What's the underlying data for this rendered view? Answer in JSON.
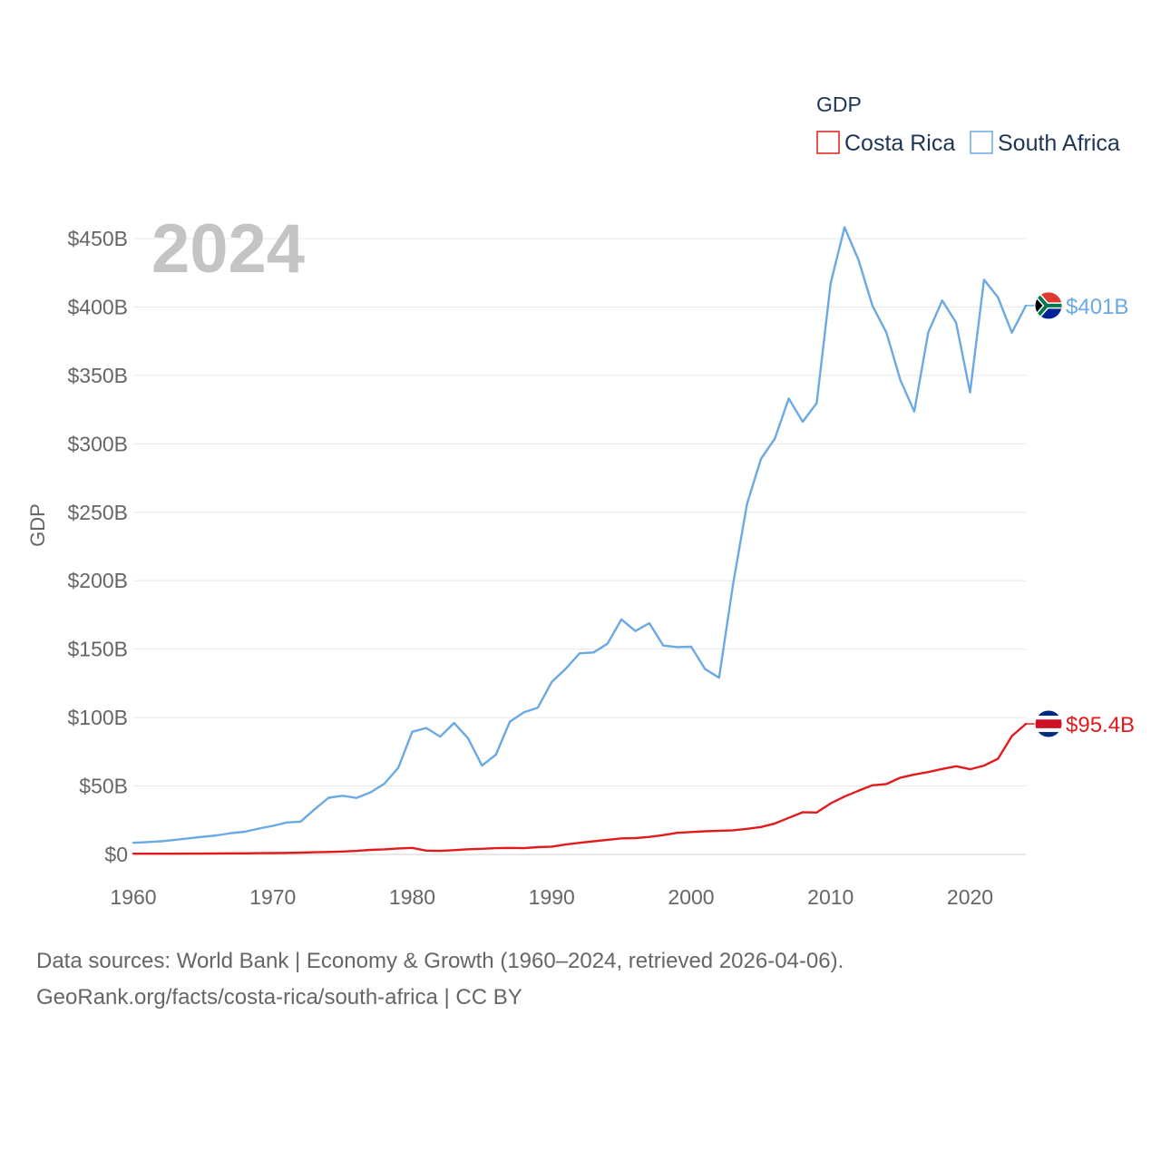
{
  "chart_data": {
    "type": "line",
    "title": "GDP",
    "ylabel": "GDP",
    "xlabel": "",
    "year_label": "2024",
    "x": [
      1960,
      1961,
      1962,
      1963,
      1964,
      1965,
      1966,
      1967,
      1968,
      1969,
      1970,
      1971,
      1972,
      1973,
      1974,
      1975,
      1976,
      1977,
      1978,
      1979,
      1980,
      1981,
      1982,
      1983,
      1984,
      1985,
      1986,
      1987,
      1988,
      1989,
      1990,
      1991,
      1992,
      1993,
      1994,
      1995,
      1996,
      1997,
      1998,
      1999,
      2000,
      2001,
      2002,
      2003,
      2004,
      2005,
      2006,
      2007,
      2008,
      2009,
      2010,
      2011,
      2012,
      2013,
      2014,
      2015,
      2016,
      2017,
      2018,
      2019,
      2020,
      2021,
      2022,
      2023,
      2024
    ],
    "xlim": [
      1960,
      2024
    ],
    "ylim": [
      0,
      450
    ],
    "y_unit": "B",
    "x_ticks": [
      1960,
      1970,
      1980,
      1990,
      2000,
      2010,
      2020
    ],
    "y_ticks": [
      {
        "value": 0,
        "label": "$0"
      },
      {
        "value": 50,
        "label": "$50B"
      },
      {
        "value": 100,
        "label": "$100B"
      },
      {
        "value": 150,
        "label": "$150B"
      },
      {
        "value": 200,
        "label": "$200B"
      },
      {
        "value": 250,
        "label": "$250B"
      },
      {
        "value": 300,
        "label": "$300B"
      },
      {
        "value": 350,
        "label": "$350B"
      },
      {
        "value": 400,
        "label": "$400B"
      },
      {
        "value": 450,
        "label": "$450B"
      }
    ],
    "grid": true,
    "legend_position": "top-right",
    "series": [
      {
        "name": "Costa Rica",
        "color": "#e31a1c",
        "end_label": "$95.4B",
        "flag": "costa-rica-flag-icon",
        "values": [
          0.5,
          0.5,
          0.5,
          0.5,
          0.6,
          0.6,
          0.7,
          0.8,
          0.8,
          0.9,
          1.0,
          1.1,
          1.3,
          1.6,
          1.8,
          2.1,
          2.6,
          3.3,
          3.7,
          4.4,
          4.8,
          2.8,
          2.6,
          3.1,
          3.8,
          4.1,
          4.6,
          4.8,
          4.6,
          5.3,
          5.7,
          7.2,
          8.5,
          9.6,
          10.7,
          11.7,
          11.9,
          12.8,
          14.1,
          15.8,
          16.4,
          16.9,
          17.3,
          17.6,
          18.7,
          20.0,
          22.6,
          26.7,
          30.8,
          30.6,
          37.3,
          42.3,
          46.5,
          50.5,
          51.4,
          56.1,
          58.4,
          60.2,
          62.4,
          64.4,
          62.2,
          64.9,
          69.9,
          86.5,
          95.4
        ]
      },
      {
        "name": "South Africa",
        "color": "#6aa9e3",
        "end_label": "$401B",
        "flag": "south-africa-flag-icon",
        "values": [
          8.5,
          9.0,
          9.6,
          10.7,
          11.8,
          12.9,
          13.9,
          15.6,
          16.6,
          18.9,
          20.9,
          23.3,
          24.0,
          33.0,
          41.4,
          42.9,
          41.3,
          45.3,
          51.7,
          63.3,
          89.6,
          92.4,
          86.1,
          96.0,
          84.9,
          64.9,
          73.0,
          97.0,
          103.8,
          107.2,
          126.0,
          135.6,
          146.9,
          147.6,
          154.0,
          171.7,
          163.2,
          168.9,
          152.6,
          151.5,
          151.8,
          135.4,
          129.1,
          197.0,
          255.8,
          288.9,
          303.9,
          333.1,
          316.1,
          329.8,
          417.4,
          458.2,
          434.4,
          400.9,
          381.2,
          346.7,
          323.6,
          381.4,
          404.8,
          388.5,
          337.6,
          419.9,
          407.0,
          381.2,
          401.0
        ]
      }
    ]
  },
  "source": {
    "line1": "Data sources: World Bank | Economy & Growth (1960–2024, retrieved 2026-04-06).",
    "line2": "GeoRank.org/facts/costa-rica/south-africa | CC BY"
  }
}
